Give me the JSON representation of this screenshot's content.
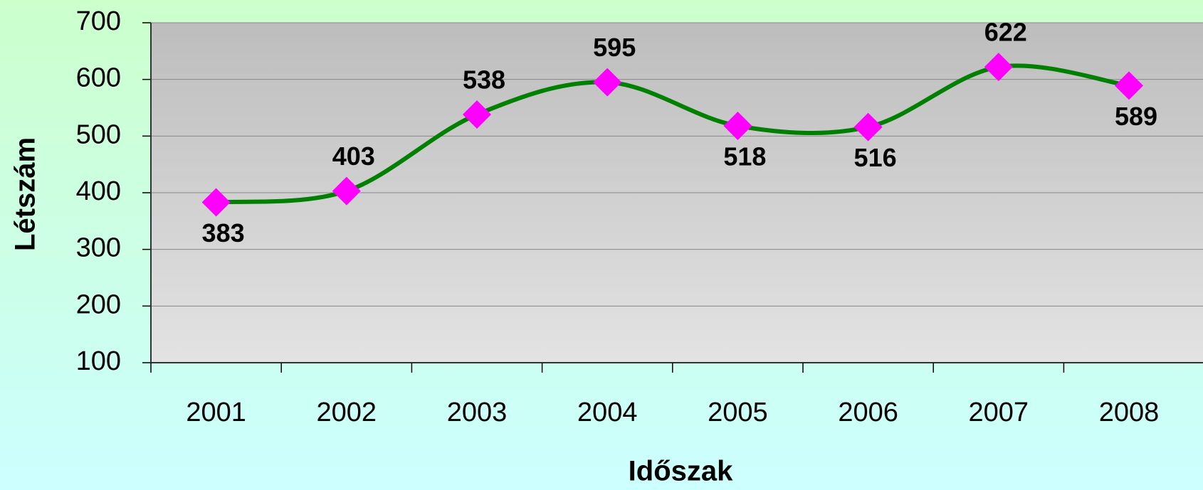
{
  "chart_data": {
    "type": "line",
    "x_label": "Időszak",
    "y_label": "Létszám",
    "categories": [
      "2001",
      "2002",
      "2003",
      "2004",
      "2005",
      "2006",
      "2007",
      "2008"
    ],
    "series": [
      {
        "name": "Létszám",
        "color": "#008000",
        "marker_color": "#ff00ff",
        "values": [
          383,
          403,
          538,
          595,
          518,
          516,
          622,
          589
        ]
      }
    ],
    "ylim": [
      100,
      700
    ],
    "yticks": [
      100,
      200,
      300,
      400,
      500,
      600,
      700
    ],
    "grid": true,
    "smooth": true
  }
}
